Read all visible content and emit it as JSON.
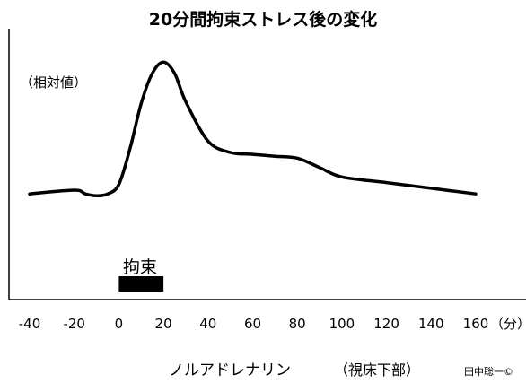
{
  "chart_data": {
    "type": "line",
    "title": "20分間拘束ストレス後の変化",
    "ylabel": "（相対値）",
    "x_unit": "（分）",
    "x_ticks": [
      "-40",
      "-20",
      "0",
      "20",
      "40",
      "60",
      "80",
      "100",
      "120",
      "140",
      "160"
    ],
    "xlim": [
      -40,
      160
    ],
    "ylim": [
      0,
      1
    ],
    "grid": false,
    "series": [
      {
        "x": [
          -40,
          -20,
          -15,
          -10,
          -5,
          0,
          5,
          10,
          15,
          20,
          25,
          30,
          40,
          50,
          60,
          70,
          80,
          90,
          100,
          120,
          140,
          160
        ],
        "y": [
          0.28,
          0.3,
          0.28,
          0.27,
          0.28,
          0.33,
          0.52,
          0.76,
          0.92,
          0.98,
          0.92,
          0.77,
          0.56,
          0.5,
          0.49,
          0.48,
          0.47,
          0.42,
          0.37,
          0.34,
          0.31,
          0.28
        ]
      }
    ],
    "restraint_bar": {
      "label": "拘束",
      "start": 0,
      "end": 20
    },
    "caption": "ノルアドレナリン",
    "region": "（視床下部）"
  },
  "credit": "田中聡一©"
}
